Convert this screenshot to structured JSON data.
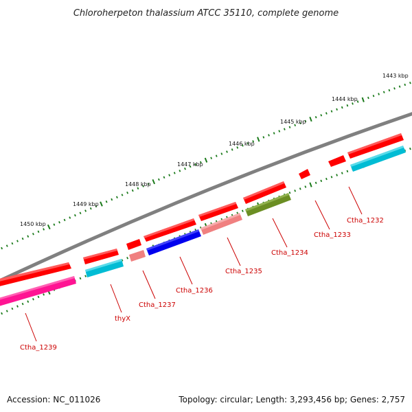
{
  "title": "Chloroherpeton thalassium ATCC 35110, complete genome",
  "footer": {
    "accession": "Accession: NC_011026",
    "summary": "Topology: circular; Length: 3,293,456 bp; Genes: 2,757"
  },
  "colors": {
    "backbone": "#808080",
    "tick": "#1a7a1a",
    "label": "#cc0000"
  },
  "scale_labels": [
    "1443 kbp",
    "1444 kbp",
    "1445 kbp",
    "1446 kbp",
    "1447 kbp",
    "1448 kbp",
    "1449 kbp",
    "1450 kbp"
  ],
  "genes": [
    {
      "name": "Ctha_1232",
      "color": "#ff0000"
    },
    {
      "name": "Ctha_1233",
      "color": "#ff0000"
    },
    {
      "name": "Ctha_1234",
      "color": "#6b8e23"
    },
    {
      "name": "Ctha_1235",
      "color": "#f08080"
    },
    {
      "name": "Ctha_1236",
      "color": "#0000ee"
    },
    {
      "name": "Ctha_1237",
      "color": "#f08080"
    },
    {
      "name": "thyX",
      "color": "#00bcd4"
    },
    {
      "name": "Ctha_1239",
      "color": "#ff1493"
    }
  ]
}
